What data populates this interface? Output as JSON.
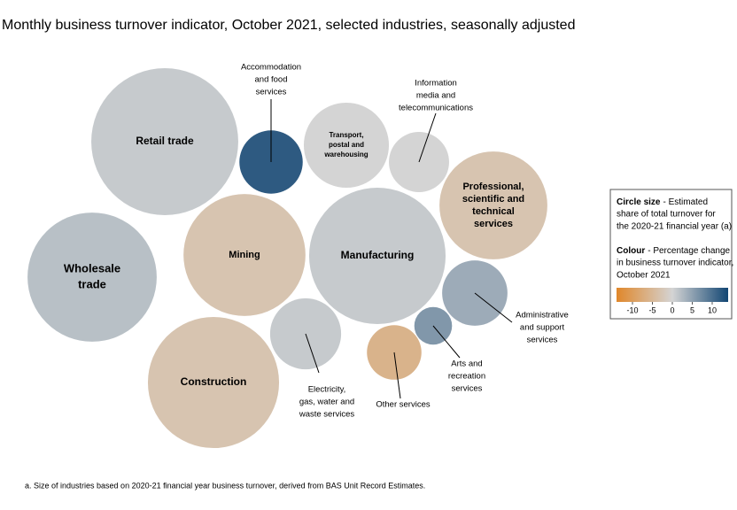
{
  "chart_data": {
    "type": "bubble",
    "title": "Monthly business turnover indicator, October 2021, selected industries, seasonally adjusted",
    "items": [
      {
        "name": [
          "Retail trade"
        ],
        "share": 16.7,
        "change": 1
      },
      {
        "name": [
          "Accommodation",
          "and food",
          "services"
        ],
        "share": 3.1,
        "change": 12
      },
      {
        "name": [
          "Transport,",
          "postal and",
          "warehousing"
        ],
        "share": 5.6,
        "change": 0
      },
      {
        "name": [
          "Information",
          "media and",
          "telecommunications"
        ],
        "share": 2.8,
        "change": 0
      },
      {
        "name": [
          "Professional,",
          "scientific and",
          "technical",
          "services"
        ],
        "share": 9.0,
        "change": -3
      },
      {
        "name": [
          "Wholesale",
          "trade"
        ],
        "share": 12.9,
        "change": 2
      },
      {
        "name": [
          "Mining"
        ],
        "share": 11.5,
        "change": -3
      },
      {
        "name": [
          "Manufacturing"
        ],
        "share": 14.4,
        "change": 1
      },
      {
        "name": [
          "Administrative",
          "and support",
          "services"
        ],
        "share": 3.3,
        "change": 4
      },
      {
        "name": [
          "Arts and",
          "recreation",
          "services"
        ],
        "share": 1.1,
        "change": 6
      },
      {
        "name": [
          "Electricity,",
          "gas, water and",
          "waste services"
        ],
        "share": 3.9,
        "change": 1
      },
      {
        "name": [
          "Other services"
        ],
        "share": 2.3,
        "change": -6
      },
      {
        "name": [
          "Construction"
        ],
        "share": 13.3,
        "change": -3
      }
    ],
    "colors": [
      "#e0872a",
      "#d4d4d4",
      "#124673"
    ],
    "colorlim": [
      -14,
      14
    ],
    "colorticks": [
      -10,
      -5,
      0,
      5,
      10
    ],
    "legend": {
      "size_title": "Circle size",
      "size_text": [
        "- Estimated",
        "share of total turnover for",
        "the 2020-21 financial year (a)"
      ],
      "colour_title": "Colour",
      "colour_text": [
        "- Percentage change",
        "in business turnover indicator,",
        "October 2021"
      ]
    },
    "footnote": "a. Size of industries based on 2020-21 financial year business turnover, derived from BAS Unit Record Estimates."
  }
}
